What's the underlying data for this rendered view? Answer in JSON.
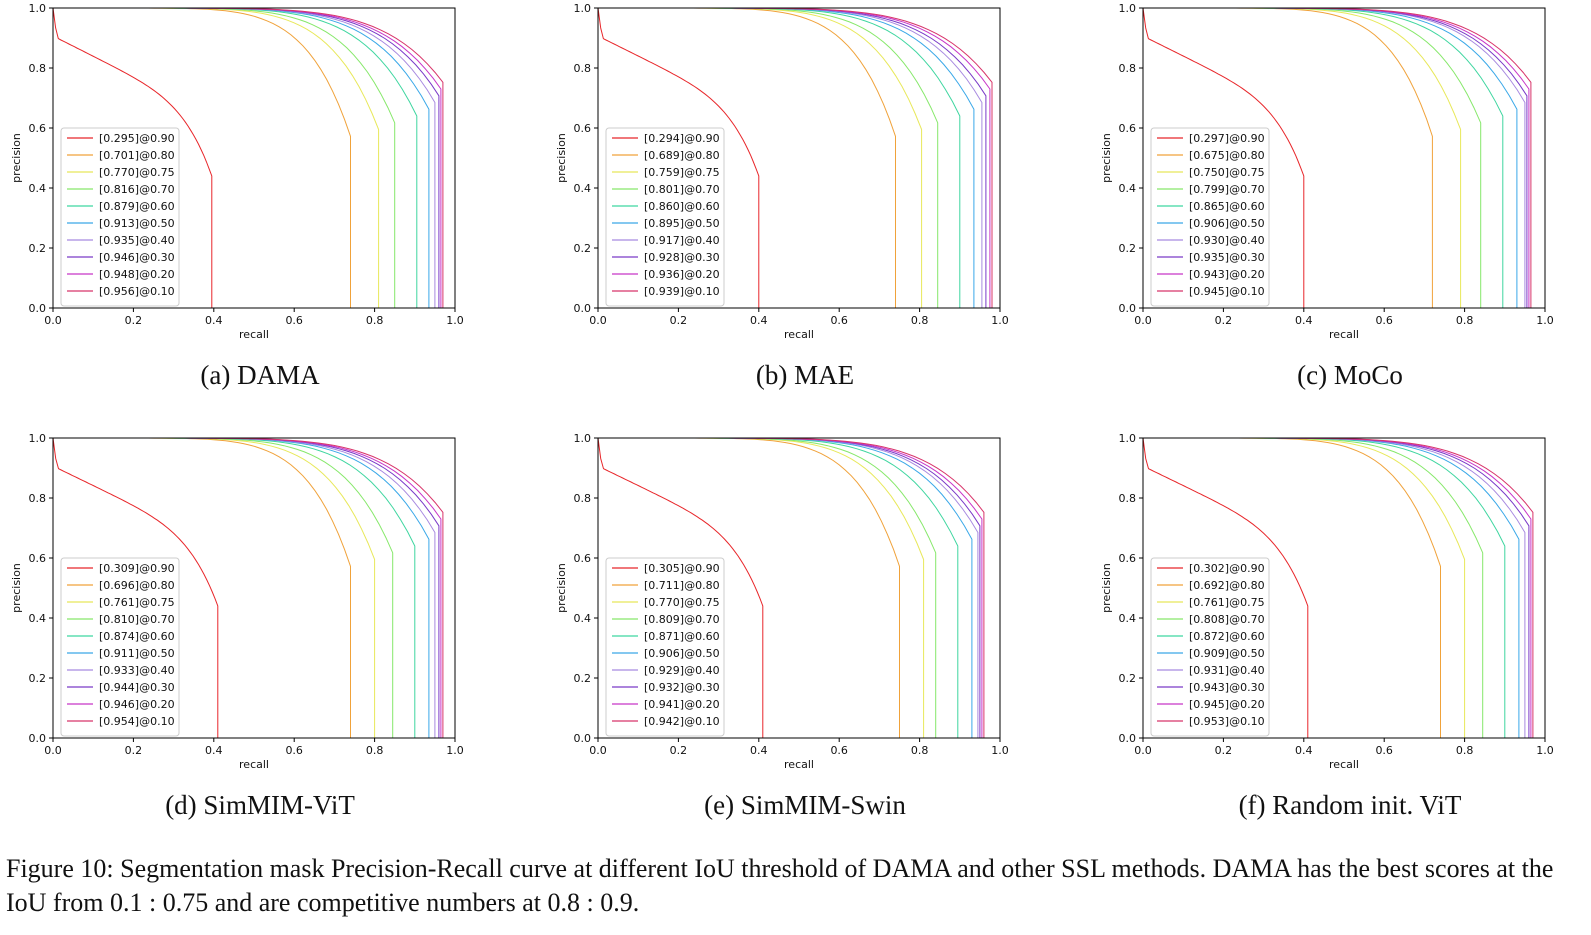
{
  "figure_caption": "Figure 10: Segmentation mask Precision-Recall curve at different IoU threshold of DAMA and other SSL methods. DAMA has the best scores at the IoU from 0.1 : 0.75 and are competitive numbers at 0.8 : 0.9.",
  "thresholds": [
    "0.90",
    "0.80",
    "0.75",
    "0.70",
    "0.60",
    "0.50",
    "0.40",
    "0.30",
    "0.20",
    "0.10"
  ],
  "series_colors": [
    "#e8262a",
    "#f0a23a",
    "#e8e85a",
    "#86e86a",
    "#3fd6a0",
    "#3aa8e8",
    "#a88ae0",
    "#7a3ac8",
    "#c836c8",
    "#d8346a"
  ],
  "chart_data": [
    {
      "type": "line",
      "caption": "(a) DAMA",
      "xlabel": "recall",
      "ylabel": "precision",
      "xlim": [
        0,
        1
      ],
      "ylim": [
        0,
        1
      ],
      "xticks": [
        "0.0",
        "0.2",
        "0.4",
        "0.6",
        "0.8",
        "1.0"
      ],
      "yticks": [
        "0.0",
        "0.2",
        "0.4",
        "0.6",
        "0.8",
        "1.0"
      ],
      "legend_placement": "lower-left",
      "grid": false,
      "series": [
        {
          "name": "[0.295]@0.90",
          "knee_recall": 0.395
        },
        {
          "name": "[0.701]@0.80",
          "knee_recall": 0.74
        },
        {
          "name": "[0.770]@0.75",
          "knee_recall": 0.81
        },
        {
          "name": "[0.816]@0.70",
          "knee_recall": 0.85
        },
        {
          "name": "[0.879]@0.60",
          "knee_recall": 0.905
        },
        {
          "name": "[0.913]@0.50",
          "knee_recall": 0.935
        },
        {
          "name": "[0.935]@0.40",
          "knee_recall": 0.95
        },
        {
          "name": "[0.946]@0.30",
          "knee_recall": 0.96
        },
        {
          "name": "[0.948]@0.20",
          "knee_recall": 0.965
        },
        {
          "name": "[0.956]@0.10",
          "knee_recall": 0.97
        }
      ]
    },
    {
      "type": "line",
      "caption": "(b) MAE",
      "xlabel": "recall",
      "ylabel": "precision",
      "xlim": [
        0,
        1
      ],
      "ylim": [
        0,
        1
      ],
      "xticks": [
        "0.0",
        "0.2",
        "0.4",
        "0.6",
        "0.8",
        "1.0"
      ],
      "yticks": [
        "0.0",
        "0.2",
        "0.4",
        "0.6",
        "0.8",
        "1.0"
      ],
      "legend_placement": "lower-left",
      "grid": false,
      "series": [
        {
          "name": "[0.294]@0.90",
          "knee_recall": 0.4
        },
        {
          "name": "[0.689]@0.80",
          "knee_recall": 0.74
        },
        {
          "name": "[0.759]@0.75",
          "knee_recall": 0.805
        },
        {
          "name": "[0.801]@0.70",
          "knee_recall": 0.845
        },
        {
          "name": "[0.860]@0.60",
          "knee_recall": 0.9
        },
        {
          "name": "[0.895]@0.50",
          "knee_recall": 0.935
        },
        {
          "name": "[0.917]@0.40",
          "knee_recall": 0.955
        },
        {
          "name": "[0.928]@0.30",
          "knee_recall": 0.965
        },
        {
          "name": "[0.936]@0.20",
          "knee_recall": 0.975
        },
        {
          "name": "[0.939]@0.10",
          "knee_recall": 0.98
        }
      ]
    },
    {
      "type": "line",
      "caption": "(c) MoCo",
      "xlabel": "recall",
      "ylabel": "precision",
      "xlim": [
        0,
        1
      ],
      "ylim": [
        0,
        1
      ],
      "xticks": [
        "0.0",
        "0.2",
        "0.4",
        "0.6",
        "0.8",
        "1.0"
      ],
      "yticks": [
        "0.0",
        "0.2",
        "0.4",
        "0.6",
        "0.8",
        "1.0"
      ],
      "legend_placement": "lower-left",
      "grid": false,
      "series": [
        {
          "name": "[0.297]@0.90",
          "knee_recall": 0.4
        },
        {
          "name": "[0.675]@0.80",
          "knee_recall": 0.72
        },
        {
          "name": "[0.750]@0.75",
          "knee_recall": 0.79
        },
        {
          "name": "[0.799]@0.70",
          "knee_recall": 0.84
        },
        {
          "name": "[0.865]@0.60",
          "knee_recall": 0.895
        },
        {
          "name": "[0.906]@0.50",
          "knee_recall": 0.93
        },
        {
          "name": "[0.930]@0.40",
          "knee_recall": 0.95
        },
        {
          "name": "[0.935]@0.30",
          "knee_recall": 0.955
        },
        {
          "name": "[0.943]@0.20",
          "knee_recall": 0.96
        },
        {
          "name": "[0.945]@0.10",
          "knee_recall": 0.965
        }
      ]
    },
    {
      "type": "line",
      "caption": "(d) SimMIM-ViT",
      "xlabel": "recall",
      "ylabel": "precision",
      "xlim": [
        0,
        1
      ],
      "ylim": [
        0,
        1
      ],
      "xticks": [
        "0.0",
        "0.2",
        "0.4",
        "0.6",
        "0.8",
        "1.0"
      ],
      "yticks": [
        "0.0",
        "0.2",
        "0.4",
        "0.6",
        "0.8",
        "1.0"
      ],
      "legend_placement": "lower-left",
      "grid": false,
      "series": [
        {
          "name": "[0.309]@0.90",
          "knee_recall": 0.41
        },
        {
          "name": "[0.696]@0.80",
          "knee_recall": 0.74
        },
        {
          "name": "[0.761]@0.75",
          "knee_recall": 0.8
        },
        {
          "name": "[0.810]@0.70",
          "knee_recall": 0.845
        },
        {
          "name": "[0.874]@0.60",
          "knee_recall": 0.9
        },
        {
          "name": "[0.911]@0.50",
          "knee_recall": 0.935
        },
        {
          "name": "[0.933]@0.40",
          "knee_recall": 0.95
        },
        {
          "name": "[0.944]@0.30",
          "knee_recall": 0.96
        },
        {
          "name": "[0.946]@0.20",
          "knee_recall": 0.965
        },
        {
          "name": "[0.954]@0.10",
          "knee_recall": 0.97
        }
      ]
    },
    {
      "type": "line",
      "caption": "(e) SimMIM-Swin",
      "xlabel": "recall",
      "ylabel": "precision",
      "xlim": [
        0,
        1
      ],
      "ylim": [
        0,
        1
      ],
      "xticks": [
        "0.0",
        "0.2",
        "0.4",
        "0.6",
        "0.8",
        "1.0"
      ],
      "yticks": [
        "0.0",
        "0.2",
        "0.4",
        "0.6",
        "0.8",
        "1.0"
      ],
      "legend_placement": "lower-left",
      "grid": false,
      "series": [
        {
          "name": "[0.305]@0.90",
          "knee_recall": 0.41
        },
        {
          "name": "[0.711]@0.80",
          "knee_recall": 0.75
        },
        {
          "name": "[0.770]@0.75",
          "knee_recall": 0.81
        },
        {
          "name": "[0.809]@0.70",
          "knee_recall": 0.84
        },
        {
          "name": "[0.871]@0.60",
          "knee_recall": 0.895
        },
        {
          "name": "[0.906]@0.50",
          "knee_recall": 0.93
        },
        {
          "name": "[0.929]@0.40",
          "knee_recall": 0.945
        },
        {
          "name": "[0.932]@0.30",
          "knee_recall": 0.95
        },
        {
          "name": "[0.941]@0.20",
          "knee_recall": 0.955
        },
        {
          "name": "[0.942]@0.10",
          "knee_recall": 0.96
        }
      ]
    },
    {
      "type": "line",
      "caption": "(f) Random init. ViT",
      "xlabel": "recall",
      "ylabel": "precision",
      "xlim": [
        0,
        1
      ],
      "ylim": [
        0,
        1
      ],
      "xticks": [
        "0.0",
        "0.2",
        "0.4",
        "0.6",
        "0.8",
        "1.0"
      ],
      "yticks": [
        "0.0",
        "0.2",
        "0.4",
        "0.6",
        "0.8",
        "1.0"
      ],
      "legend_placement": "lower-left",
      "grid": false,
      "series": [
        {
          "name": "[0.302]@0.90",
          "knee_recall": 0.41
        },
        {
          "name": "[0.692]@0.80",
          "knee_recall": 0.74
        },
        {
          "name": "[0.761]@0.75",
          "knee_recall": 0.8
        },
        {
          "name": "[0.808]@0.70",
          "knee_recall": 0.845
        },
        {
          "name": "[0.872]@0.60",
          "knee_recall": 0.9
        },
        {
          "name": "[0.909]@0.50",
          "knee_recall": 0.935
        },
        {
          "name": "[0.931]@0.40",
          "knee_recall": 0.95
        },
        {
          "name": "[0.943]@0.30",
          "knee_recall": 0.96
        },
        {
          "name": "[0.945]@0.20",
          "knee_recall": 0.965
        },
        {
          "name": "[0.953]@0.10",
          "knee_recall": 0.97
        }
      ]
    }
  ]
}
